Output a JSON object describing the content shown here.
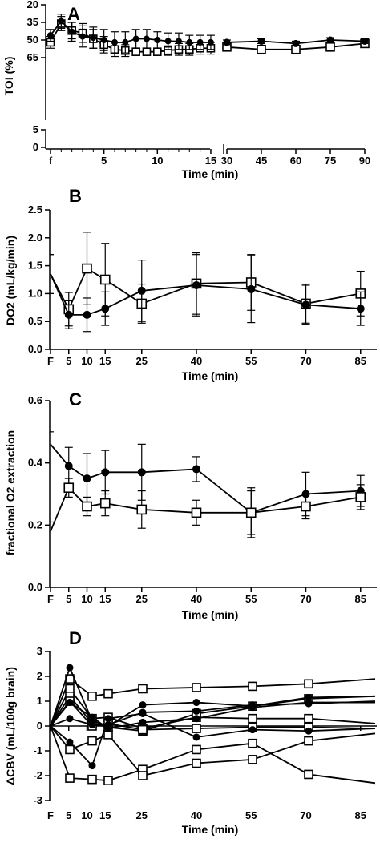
{
  "chart_data": [
    {
      "panel": "A",
      "type": "line",
      "ylabel": "TOI (%)",
      "xlabel": "Time (min)",
      "yticks": [
        "65",
        "50",
        "35",
        "20",
        "5",
        "0"
      ],
      "xticks": [
        "f",
        "5",
        "10",
        "15",
        "30",
        "45",
        "60",
        "75",
        "90"
      ],
      "series": [
        {
          "marker": "open-square",
          "segments": [
            {
              "x": [
                "f",
                1,
                2,
                3,
                4,
                5,
                6,
                7,
                8,
                9,
                10,
                11,
                12,
                13,
                14,
                15
              ],
              "y": [
                52,
                36,
                42,
                44,
                49,
                54,
                58,
                59,
                60,
                60,
                60,
                59,
                58,
                58,
                57,
                57
              ],
              "err": [
                5,
                6,
                7,
                8,
                8,
                7,
                6,
                5,
                3,
                3,
                3,
                4,
                5,
                5,
                5,
                5
              ]
            },
            {
              "x": [
                30,
                45,
                60,
                75,
                90
              ],
              "y": [
                56,
                58,
                58,
                56,
                53
              ],
              "err": [
                2,
                2,
                2,
                2,
                2
              ]
            }
          ]
        },
        {
          "marker": "filled-circle",
          "segments": [
            {
              "x": [
                "f",
                1,
                2,
                3,
                4,
                5,
                6,
                7,
                8,
                9,
                10,
                11,
                12,
                13,
                14,
                15
              ],
              "y": [
                46,
                34,
                43,
                47,
                48,
                50,
                52,
                52,
                49,
                49,
                50,
                51,
                51,
                52,
                52,
                52
              ],
              "err": [
                5,
                6,
                8,
                9,
                9,
                9,
                9,
                9,
                8,
                8,
                7,
                7,
                7,
                6,
                6,
                6
              ]
            },
            {
              "x": [
                30,
                45,
                60,
                75,
                90
              ],
              "y": [
                52,
                51,
                53,
                50,
                51
              ],
              "err": [
                2,
                2,
                2,
                2,
                2
              ]
            }
          ]
        }
      ]
    },
    {
      "panel": "B",
      "type": "line",
      "ylabel": "DO2 (mL/kg/min)",
      "xlabel": "Time (min)",
      "yticks": [
        "0.0",
        "0.5",
        "1.0",
        "1.5",
        "2.0",
        "2.5"
      ],
      "xticks": [
        "F",
        "5",
        "10",
        "15",
        "25",
        "40",
        "55",
        "70",
        "85"
      ],
      "ylim": [
        0,
        2.5
      ],
      "series": [
        {
          "marker": "open-square",
          "x": [
            0,
            5,
            10,
            15,
            25,
            40,
            55,
            70,
            85
          ],
          "y": [
            1.35,
            0.72,
            1.45,
            1.25,
            0.82,
            1.18,
            1.2,
            0.82,
            1.0
          ],
          "err": [
            0.35,
            0.3,
            0.65,
            0.65,
            0.35,
            0.55,
            0.5,
            0.35,
            0.4
          ]
        },
        {
          "marker": "filled-circle",
          "x": [
            0,
            5,
            10,
            15,
            25,
            40,
            55,
            70,
            85
          ],
          "y": [
            1.35,
            0.62,
            0.62,
            0.73,
            1.05,
            1.15,
            1.08,
            0.8,
            0.73
          ],
          "err": [
            0.35,
            0.25,
            0.3,
            0.3,
            0.55,
            0.55,
            0.6,
            0.35,
            0.3
          ]
        }
      ]
    },
    {
      "panel": "C",
      "type": "line",
      "ylabel": "fractional O2 extraction",
      "xlabel": "Time (min)",
      "yticks": [
        "0.0",
        "0.2",
        "0.4",
        "0.6"
      ],
      "xticks": [
        "F",
        "5",
        "10",
        "15",
        "25",
        "40",
        "55",
        "70",
        "85"
      ],
      "ylim": [
        0,
        0.6
      ],
      "series": [
        {
          "marker": "filled-circle",
          "x": [
            0,
            5,
            10,
            15,
            25,
            40,
            55,
            70,
            85
          ],
          "y": [
            0.46,
            0.39,
            0.35,
            0.37,
            0.37,
            0.38,
            0.24,
            0.3,
            0.31
          ],
          "err": [
            0.04,
            0.06,
            0.08,
            0.07,
            0.09,
            0.04,
            0.08,
            0.07,
            0.05
          ]
        },
        {
          "marker": "open-square",
          "x": [
            0,
            5,
            10,
            15,
            25,
            40,
            55,
            70,
            85
          ],
          "y": [
            0.18,
            0.32,
            0.26,
            0.27,
            0.25,
            0.24,
            0.24,
            0.26,
            0.29
          ],
          "err": [
            0.03,
            0.03,
            0.03,
            0.04,
            0.06,
            0.04,
            0.07,
            0.04,
            0.04
          ]
        }
      ]
    },
    {
      "panel": "D",
      "type": "line",
      "ylabel": "ΔCBV (mL/100g brain)",
      "xlabel": "Time (min)",
      "yticks": [
        "3",
        "2",
        "1",
        "0",
        "-1",
        "-2",
        "-3"
      ],
      "xticks": [
        "F",
        "5",
        "10",
        "15",
        "25",
        "40",
        "55",
        "70",
        "85"
      ],
      "ylim": [
        -3,
        3
      ],
      "series": [
        {
          "marker": "open-square",
          "x": [
            0,
            5,
            10,
            15,
            30,
            45,
            60,
            75,
            90
          ],
          "y": [
            0,
            1.9,
            1.2,
            1.3,
            1.5,
            1.55,
            1.6,
            1.7,
            1.9
          ]
        },
        {
          "marker": "open-square",
          "x": [
            0,
            5,
            10,
            15,
            30,
            45,
            60,
            75,
            90
          ],
          "y": [
            0,
            -2.1,
            -2.15,
            -2.2,
            -1.75,
            -0.95,
            -0.7,
            -1.95,
            -2.3
          ]
        },
        {
          "marker": "open-square",
          "x": [
            0,
            5,
            10,
            15,
            30,
            45,
            60,
            75,
            90
          ],
          "y": [
            0,
            -0.95,
            -0.6,
            -0.35,
            -2.0,
            -1.5,
            -1.35,
            -0.6,
            -0.3
          ]
        },
        {
          "marker": "open-square",
          "x": [
            0,
            5,
            10,
            15,
            30,
            45,
            60,
            75,
            90
          ],
          "y": [
            0,
            1.5,
            0.3,
            0.35,
            -0.1,
            0.35,
            0.3,
            0.3,
            0.1
          ]
        },
        {
          "marker": "open-square",
          "x": [
            0,
            5,
            10,
            15,
            30,
            45,
            60,
            75,
            90
          ],
          "y": [
            0,
            1.2,
            0.1,
            -0.05,
            -0.2,
            0.5,
            0.8,
            1.1,
            1.2
          ]
        },
        {
          "marker": "open-square",
          "x": [
            0,
            5,
            10,
            15,
            30,
            45,
            60,
            75,
            90
          ],
          "y": [
            0,
            1.0,
            0.0,
            0.1,
            -0.15,
            -0.1,
            -0.05,
            -0.05,
            -0.1
          ]
        },
        {
          "marker": "filled-circle",
          "x": [
            0,
            5,
            10,
            15,
            30,
            45,
            60,
            75,
            90
          ],
          "y": [
            0,
            2.35,
            0.2,
            0.0,
            0.85,
            0.95,
            0.8,
            1.15,
            1.2
          ]
        },
        {
          "marker": "filled-circle",
          "x": [
            0,
            5,
            10,
            15,
            30,
            45,
            60,
            75,
            90
          ],
          "y": [
            0,
            -0.65,
            -1.6,
            0.3,
            0.5,
            -0.45,
            -0.15,
            -0.2,
            -0.1
          ]
        },
        {
          "marker": "filled-circle",
          "x": [
            0,
            5,
            10,
            15,
            30,
            45,
            60,
            75,
            90
          ],
          "y": [
            0,
            0.3,
            0.05,
            0.05,
            0.55,
            0.6,
            0.85,
            0.9,
            1.0
          ]
        },
        {
          "marker": "filled-circle",
          "x": [
            0,
            5,
            10,
            15,
            30,
            45,
            60,
            75,
            90
          ],
          "y": [
            0,
            0.95,
            0.35,
            -0.1,
            0.15,
            0.3,
            0.75,
            0.95,
            0.95
          ]
        }
      ]
    }
  ]
}
